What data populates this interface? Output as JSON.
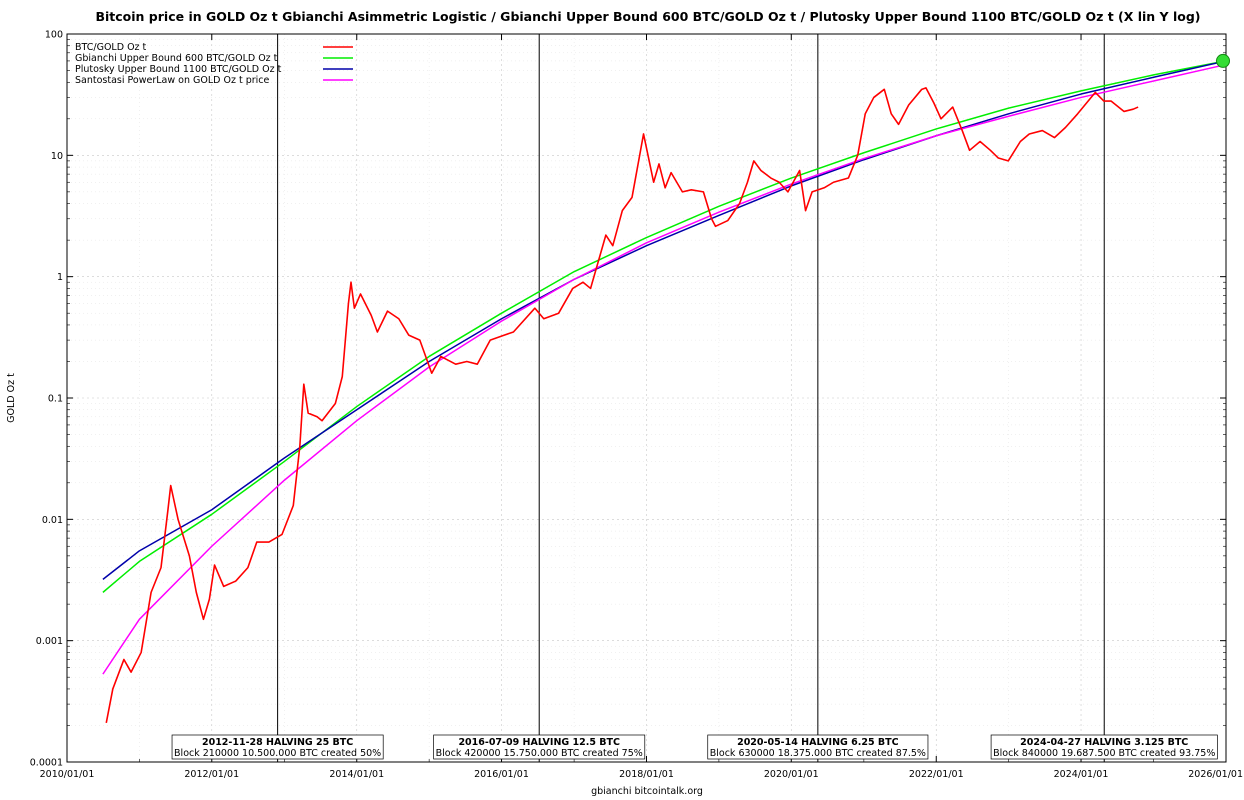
{
  "chart_data": {
    "type": "line",
    "title": "Bitcoin price in GOLD Oz t Gbianchi Asimmetric Logistic / Gbianchi Upper Bound 600  BTC/GOLD Oz t / Plutosky Upper Bound 1100  BTC/GOLD Oz t  (X lin Y log)",
    "ylabel": "GOLD Oz t",
    "xlabel": "gbianchi bitcointalk.org",
    "y_scale": "log",
    "ylim": [
      0.0001,
      100
    ],
    "xlim": [
      "2010/01/01",
      "2026/01/01"
    ],
    "x_ticks": [
      "2010/01/01",
      "2012/01/01",
      "2014/01/01",
      "2016/01/01",
      "2018/01/01",
      "2020/01/01",
      "2022/01/01",
      "2024/01/01",
      "2026/01/01"
    ],
    "y_ticks": [
      "0.0001",
      "0.001",
      "0.01",
      "0.1",
      "1",
      "10",
      "100"
    ],
    "grid": true,
    "legend_position": "top-left",
    "series": [
      {
        "name": "BTC/GOLD Oz t",
        "color": "#ff0000",
        "points": [
          [
            "2010/07/18",
            0.00021
          ],
          [
            "2010/08/20",
            0.0004
          ],
          [
            "2010/10/15",
            0.0007
          ],
          [
            "2010/11/20",
            0.00055
          ],
          [
            "2011/01/10",
            0.0008
          ],
          [
            "2011/03/01",
            0.0025
          ],
          [
            "2011/04/20",
            0.004
          ],
          [
            "2011/05/25",
            0.012
          ],
          [
            "2011/06/08",
            0.019
          ],
          [
            "2011/07/15",
            0.01
          ],
          [
            "2011/09/10",
            0.005
          ],
          [
            "2011/10/15",
            0.0025
          ],
          [
            "2011/11/20",
            0.0015
          ],
          [
            "2011/12/20",
            0.0022
          ],
          [
            "2012/01/15",
            0.0042
          ],
          [
            "2012/03/01",
            0.0028
          ],
          [
            "2012/05/01",
            0.0031
          ],
          [
            "2012/07/01",
            0.004
          ],
          [
            "2012/08/15",
            0.0065
          ],
          [
            "2012/10/15",
            0.0065
          ],
          [
            "2012/12/20",
            0.0075
          ],
          [
            "2013/02/15",
            0.013
          ],
          [
            "2013/03/20",
            0.04
          ],
          [
            "2013/04/09",
            0.13
          ],
          [
            "2013/05/01",
            0.075
          ],
          [
            "2013/06/15",
            0.07
          ],
          [
            "2013/07/10",
            0.065
          ],
          [
            "2013/09/15",
            0.09
          ],
          [
            "2013/10/20",
            0.15
          ],
          [
            "2013/11/20",
            0.6
          ],
          [
            "2013/12/03",
            0.9
          ],
          [
            "2013/12/20",
            0.55
          ],
          [
            "2014/01/20",
            0.72
          ],
          [
            "2014/03/15",
            0.48
          ],
          [
            "2014/04/15",
            0.35
          ],
          [
            "2014/06/05",
            0.52
          ],
          [
            "2014/08/01",
            0.45
          ],
          [
            "2014/09/20",
            0.33
          ],
          [
            "2014/11/15",
            0.3
          ],
          [
            "2015/01/14",
            0.16
          ],
          [
            "2015/03/01",
            0.22
          ],
          [
            "2015/05/15",
            0.19
          ],
          [
            "2015/07/10",
            0.2
          ],
          [
            "2015/09/01",
            0.19
          ],
          [
            "2015/11/05",
            0.3
          ],
          [
            "2016/01/15",
            0.33
          ],
          [
            "2016/03/01",
            0.35
          ],
          [
            "2016/06/17",
            0.55
          ],
          [
            "2016/08/01",
            0.45
          ],
          [
            "2016/10/15",
            0.5
          ],
          [
            "2016/12/25",
            0.8
          ],
          [
            "2017/02/15",
            0.9
          ],
          [
            "2017/03/25",
            0.8
          ],
          [
            "2017/06/10",
            2.2
          ],
          [
            "2017/07/15",
            1.8
          ],
          [
            "2017/09/01",
            3.5
          ],
          [
            "2017/10/20",
            4.5
          ],
          [
            "2017/12/17",
            15
          ],
          [
            "2018/02/06",
            6
          ],
          [
            "2018/03/05",
            8.5
          ],
          [
            "2018/04/05",
            5.4
          ],
          [
            "2018/05/05",
            7.2
          ],
          [
            "2018/07/01",
            5
          ],
          [
            "2018/08/15",
            5.2
          ],
          [
            "2018/10/15",
            5
          ],
          [
            "2018/11/25",
            3
          ],
          [
            "2018/12/15",
            2.6
          ],
          [
            "2019/02/15",
            2.9
          ],
          [
            "2019/04/15",
            4
          ],
          [
            "2019/05/25",
            6
          ],
          [
            "2019/06/26",
            9
          ],
          [
            "2019/08/01",
            7.5
          ],
          [
            "2019/09/20",
            6.5
          ],
          [
            "2019/11/01",
            6
          ],
          [
            "2019/12/15",
            5
          ],
          [
            "2020/02/12",
            7.5
          ],
          [
            "2020/03/13",
            3.5
          ],
          [
            "2020/04/15",
            5
          ],
          [
            "2020/06/15",
            5.4
          ],
          [
            "2020/08/01",
            6
          ],
          [
            "2020/10/15",
            6.5
          ],
          [
            "2020/12/01",
            10
          ],
          [
            "2021/01/08",
            22
          ],
          [
            "2021/02/20",
            30
          ],
          [
            "2021/04/14",
            35
          ],
          [
            "2021/05/19",
            22
          ],
          [
            "2021/06/25",
            18
          ],
          [
            "2021/08/15",
            26
          ],
          [
            "2021/10/20",
            35
          ],
          [
            "2021/11/10",
            36
          ],
          [
            "2021/12/20",
            27
          ],
          [
            "2022/01/25",
            20
          ],
          [
            "2022/03/25",
            25
          ],
          [
            "2022/05/12",
            16
          ],
          [
            "2022/06/18",
            11
          ],
          [
            "2022/08/10",
            13
          ],
          [
            "2022/10/01",
            11
          ],
          [
            "2022/11/10",
            9.5
          ],
          [
            "2022/12/30",
            9
          ],
          [
            "2023/03/01",
            13
          ],
          [
            "2023/04/15",
            15
          ],
          [
            "2023/06/20",
            16
          ],
          [
            "2023/08/20",
            14
          ],
          [
            "2023/10/15",
            17
          ],
          [
            "2023/12/15",
            22
          ],
          [
            "2024/03/13",
            33
          ],
          [
            "2024/04/25",
            28
          ],
          [
            "2024/06/01",
            28
          ],
          [
            "2024/08/05",
            23
          ],
          [
            "2024/09/20",
            24
          ],
          [
            "2024/10/15",
            25
          ]
        ]
      },
      {
        "name": "Gbianchi Upper Bound 600  BTC/GOLD Oz t",
        "color": "#00ee00",
        "points": [
          [
            "2010/07/01",
            0.0025
          ],
          [
            "2011/01/01",
            0.0045
          ],
          [
            "2012/01/01",
            0.011
          ],
          [
            "2013/01/01",
            0.03
          ],
          [
            "2014/01/01",
            0.085
          ],
          [
            "2015/01/01",
            0.22
          ],
          [
            "2016/01/01",
            0.5
          ],
          [
            "2017/01/01",
            1.1
          ],
          [
            "2018/01/01",
            2.1
          ],
          [
            "2019/01/01",
            3.8
          ],
          [
            "2020/01/01",
            6.5
          ],
          [
            "2021/01/01",
            10.5
          ],
          [
            "2022/01/01",
            16.5
          ],
          [
            "2023/01/01",
            24.5
          ],
          [
            "2024/01/01",
            34
          ],
          [
            "2025/01/01",
            46
          ],
          [
            "2026/01/01",
            60
          ]
        ]
      },
      {
        "name": "Plutosky Upper Bound 1100  BTC/GOLD Oz t",
        "color": "#0000aa",
        "points": [
          [
            "2010/07/01",
            0.0032
          ],
          [
            "2011/01/01",
            0.0055
          ],
          [
            "2012/01/01",
            0.012
          ],
          [
            "2013/01/01",
            0.032
          ],
          [
            "2014/01/01",
            0.08
          ],
          [
            "2015/01/01",
            0.2
          ],
          [
            "2016/01/01",
            0.45
          ],
          [
            "2017/01/01",
            0.95
          ],
          [
            "2018/01/01",
            1.8
          ],
          [
            "2019/01/01",
            3.2
          ],
          [
            "2020/01/01",
            5.6
          ],
          [
            "2021/01/01",
            9.2
          ],
          [
            "2022/01/01",
            14.5
          ],
          [
            "2023/01/01",
            22
          ],
          [
            "2024/01/01",
            32
          ],
          [
            "2025/01/01",
            44
          ],
          [
            "2026/01/01",
            60
          ]
        ]
      },
      {
        "name": "Santostasi PowerLaw on GOLD Oz t price",
        "color": "#ff00ff",
        "points": [
          [
            "2010/07/01",
            0.00053
          ],
          [
            "2011/01/01",
            0.0015
          ],
          [
            "2012/01/01",
            0.006
          ],
          [
            "2013/01/01",
            0.021
          ],
          [
            "2014/01/01",
            0.065
          ],
          [
            "2015/01/01",
            0.18
          ],
          [
            "2016/01/01",
            0.43
          ],
          [
            "2017/01/01",
            0.95
          ],
          [
            "2018/01/01",
            1.9
          ],
          [
            "2019/01/01",
            3.4
          ],
          [
            "2020/01/01",
            5.8
          ],
          [
            "2021/01/01",
            9.4
          ],
          [
            "2022/01/01",
            14.5
          ],
          [
            "2023/01/01",
            21
          ],
          [
            "2024/01/01",
            30
          ],
          [
            "2025/01/01",
            41
          ],
          [
            "2026/01/01",
            56
          ]
        ]
      }
    ],
    "vertical_markers": [
      "2012/11/28",
      "2016/07/09",
      "2020/05/14",
      "2024/04/27"
    ],
    "end_marker": {
      "date": "2026/01/01",
      "value": 60,
      "color": "#33dd33"
    },
    "annotations": [
      {
        "line1": "2012-11-28 HALVING 25 BTC",
        "line2": "Block 210000 10.500.000 BTC created 50%",
        "date": "2012/11/28"
      },
      {
        "line1": "2016-07-09 HALVING 12.5 BTC",
        "line2": "Block 420000 15.750.000 BTC created 75%",
        "date": "2016/07/09"
      },
      {
        "line1": "2020-05-14 HALVING 6.25 BTC",
        "line2": "Block 630000 18.375.000 BTC created 87.5%",
        "date": "2020/05/14"
      },
      {
        "line1": "2024-04-27 HALVING 3.125 BTC",
        "line2": "Block 840000 19.687.500 BTC created 93.75%",
        "date": "2024/04/27"
      }
    ]
  }
}
